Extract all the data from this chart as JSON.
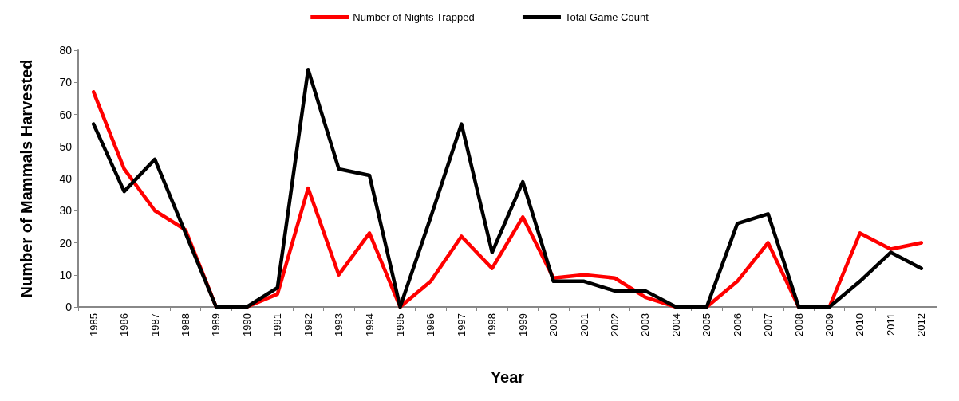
{
  "chart_data": {
    "type": "line",
    "xlabel": "Year",
    "ylabel": "Number of Mammals Harvested",
    "categories": [
      "1985",
      "1986",
      "1987",
      "1988",
      "1989",
      "1990",
      "1991",
      "1992",
      "1993",
      "1994",
      "1995",
      "1996",
      "1997",
      "1998",
      "1999",
      "2000",
      "2001",
      "2002",
      "2003",
      "2004",
      "2005",
      "2006",
      "2007",
      "2008",
      "2009",
      "2010",
      "2011",
      "2012"
    ],
    "series": [
      {
        "name": "Number of Nights Trapped",
        "color": "#ff0000",
        "values": [
          67,
          43,
          30,
          24,
          0,
          0,
          4,
          37,
          10,
          23,
          0,
          8,
          22,
          12,
          28,
          9,
          10,
          9,
          3,
          0,
          0,
          8,
          20,
          0,
          0,
          23,
          18,
          20
        ]
      },
      {
        "name": "Total Game Count",
        "color": "#000000",
        "values": [
          57,
          36,
          46,
          23,
          0,
          0,
          6,
          74,
          43,
          41,
          0,
          28,
          57,
          17,
          39,
          8,
          8,
          5,
          5,
          0,
          0,
          26,
          29,
          0,
          0,
          8,
          17,
          12
        ]
      }
    ],
    "ylim": [
      0,
      80
    ],
    "yticks": [
      0,
      10,
      20,
      30,
      40,
      50,
      60,
      70,
      80
    ],
    "grid": false,
    "legend": "top",
    "marker": "none",
    "line_style": "solid"
  }
}
